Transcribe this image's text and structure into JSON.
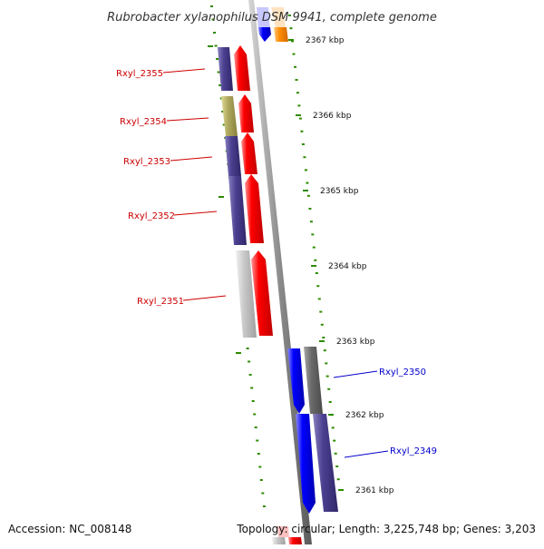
{
  "title": "Rubrobacter xylanophilus DSM 9941, complete genome",
  "footer": {
    "accession": "Accession: NC_008148",
    "topology": "Topology: circular; Length: 3,225,748 bp; Genes: 3,203"
  },
  "scale_labels": [
    "2367 kbp",
    "2366 kbp",
    "2365 kbp",
    "2364 kbp",
    "2363 kbp",
    "2362 kbp",
    "2361 kbp"
  ],
  "gene_labels_left": [
    "Rxyl_2355",
    "Rxyl_2354",
    "Rxyl_2353",
    "Rxyl_2352",
    "Rxyl_2351"
  ],
  "gene_labels_right": [
    "Rxyl_2350",
    "Rxyl_2349"
  ],
  "colors": {
    "label_left": "#cc0000",
    "label_right": "#0000cc",
    "ticks": "#2e8b00",
    "gene_red": "#ff0000",
    "gene_blue": "#0000ff",
    "cog_purple": "#4b4090",
    "cog_khaki": "#b0aa60",
    "cog_gray": "#c8c8c8",
    "cog_darkgray": "#6a6a6a",
    "orange": "#ff8c00"
  }
}
